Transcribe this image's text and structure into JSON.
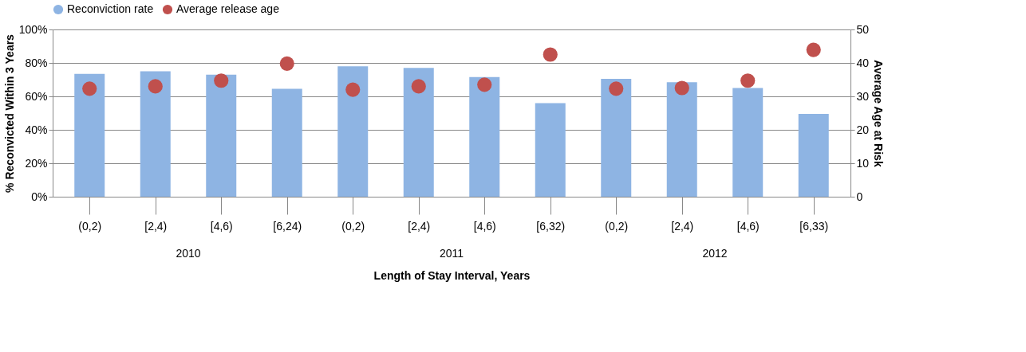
{
  "chart_data": {
    "type": "bar",
    "categories": [
      "(0,2)",
      "[2,4)",
      "[4,6)",
      "[6,24)",
      "(0,2)",
      "[2,4)",
      "[4,6)",
      "[6,32)",
      "(0,2)",
      "[2,4)",
      "[4,6)",
      "[6,33)"
    ],
    "series": [
      {
        "name": "Reconviction rate",
        "color": "#8eb4e3",
        "values": [
          73.5,
          75,
          73,
          64.5,
          78,
          77,
          71.5,
          56,
          70.5,
          68.5,
          65,
          49.5
        ]
      },
      {
        "name": "Average release age",
        "color": "#c0504d",
        "type": "scatter",
        "axis": "y2",
        "values": [
          32.3,
          33,
          34.7,
          39.8,
          32,
          33,
          33.5,
          42.5,
          32.3,
          32.5,
          34.7,
          43.9
        ]
      }
    ],
    "annotations": [
      "2010",
      "2011",
      "2012"
    ],
    "xlabel": "Length of Stay Interval, Years",
    "ylabel": "% Reconvicted Within 3 Years",
    "y2label": "Average Age at Risk",
    "ylim": [
      0,
      100
    ],
    "yticks": [
      {
        "value": 0,
        "label": "0%"
      },
      {
        "value": 20,
        "label": "20%"
      },
      {
        "value": 40,
        "label": "40%"
      },
      {
        "value": 60,
        "label": "60%"
      },
      {
        "value": 80,
        "label": "80%"
      },
      {
        "value": 100,
        "label": "100%"
      }
    ],
    "y2lim": [
      0,
      50
    ],
    "y2ticks": [
      0,
      10,
      20,
      30,
      40,
      50
    ],
    "grid": "y",
    "legend": "top",
    "marker": "circle"
  }
}
